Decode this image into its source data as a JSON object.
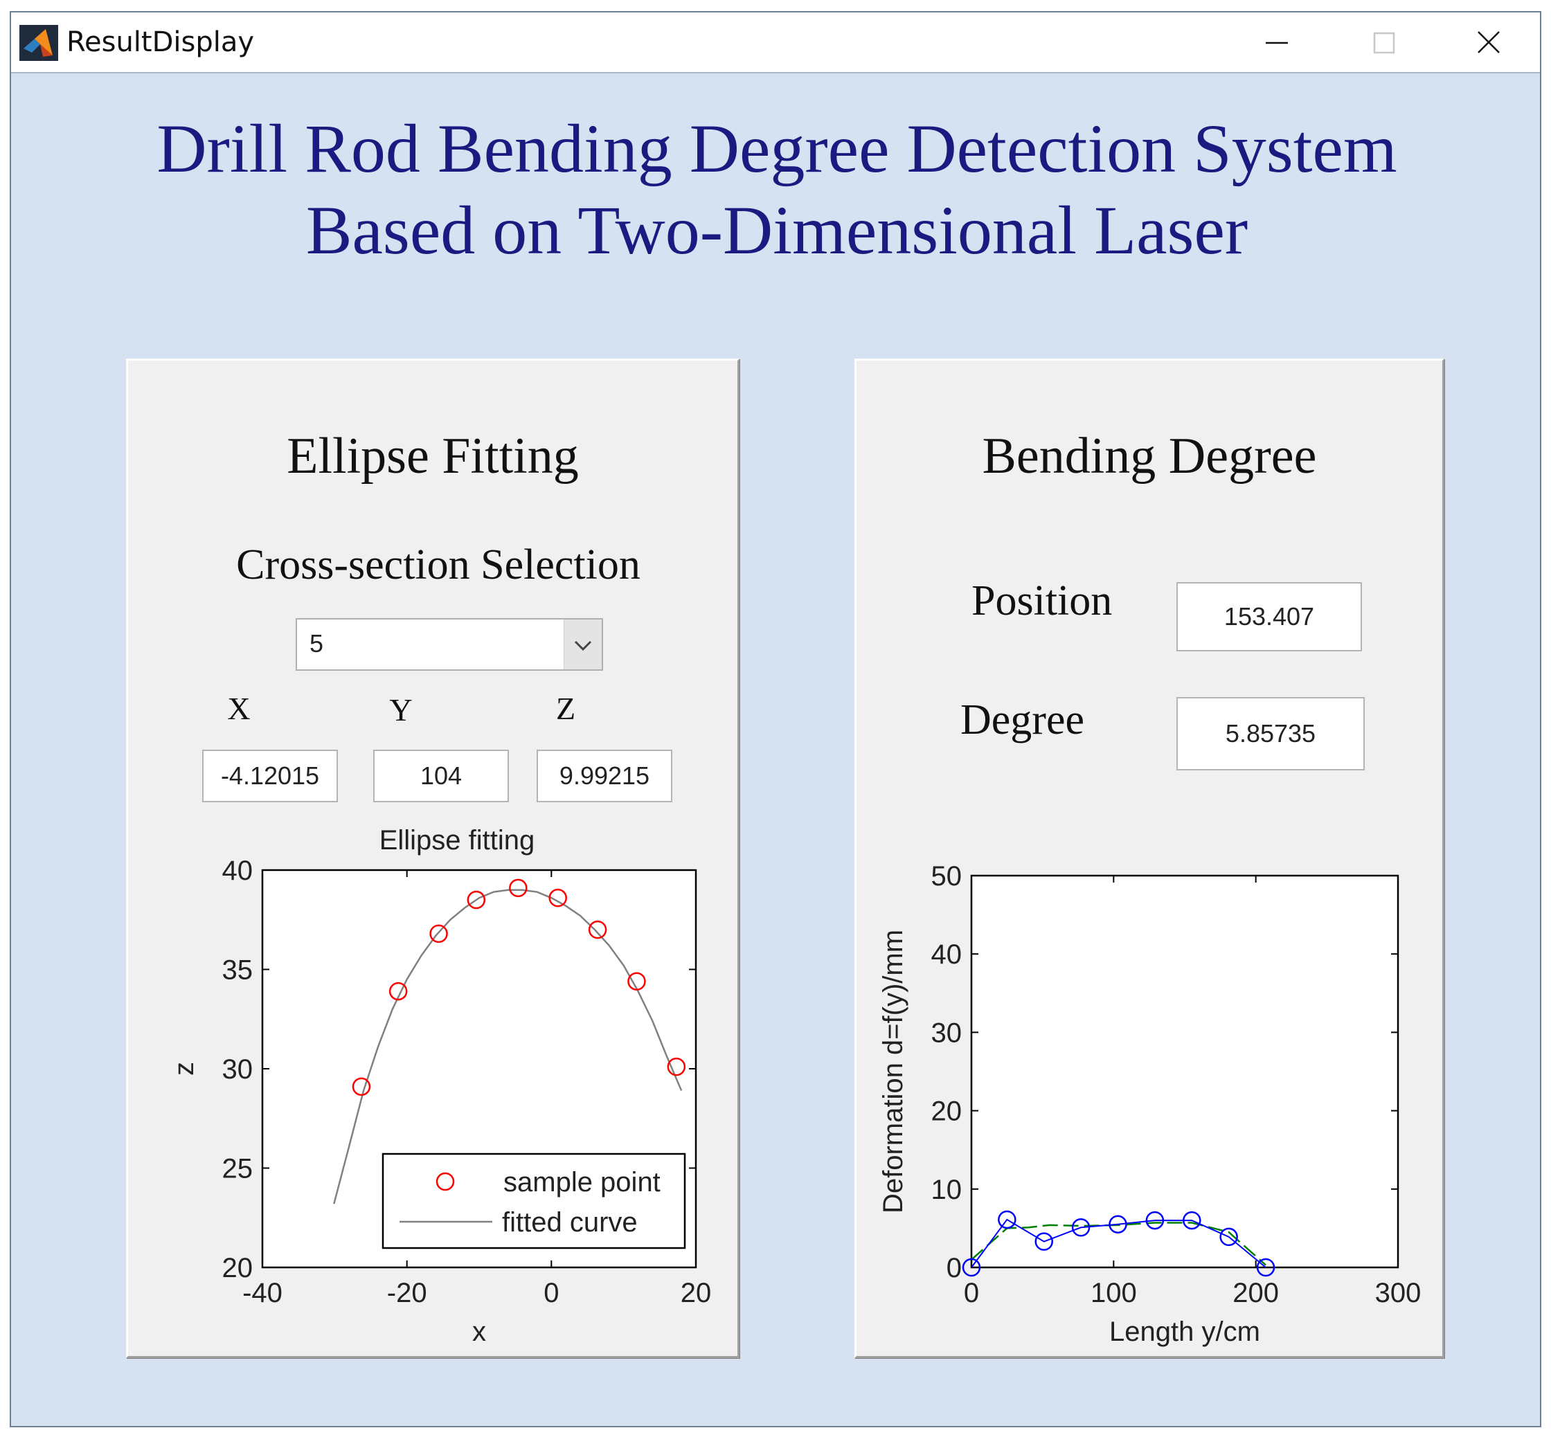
{
  "window": {
    "title": "ResultDisplay",
    "icon": "matlab-logo-icon",
    "controls": [
      "minimize-icon",
      "maximize-icon",
      "close-icon"
    ]
  },
  "header": {
    "title_line1": "Drill Rod Bending Degree Detection System",
    "title_line2": "Based on Two-Dimensional Laser"
  },
  "ellipse_panel": {
    "title": "Ellipse Fitting",
    "selection_label": "Cross-section Selection",
    "selection_value": "5",
    "x_label": "X",
    "y_label": "Y",
    "z_label": "Z",
    "x_value": "-4.12015",
    "y_value": "104",
    "z_value": "9.99215"
  },
  "bending_panel": {
    "title": "Bending Degree",
    "position_label": "Position",
    "position_value": "153.407",
    "degree_label": "Degree",
    "degree_value": "5.85735"
  },
  "colors": {
    "background": "#d6e2f1",
    "title": "#1a1b80",
    "panel": "#f0f0f0",
    "sample_point": "#ff0000",
    "fitted_curve": "#808080",
    "deformation_points": "#0000ff",
    "deformation_fit": "#008000"
  },
  "chart_data": [
    {
      "type": "scatter",
      "title": "Ellipse fitting",
      "xlabel": "x",
      "ylabel": "z",
      "xlim": [
        -40,
        20
      ],
      "ylim": [
        20,
        40
      ],
      "xticks": [
        -40,
        -20,
        0,
        20
      ],
      "yticks": [
        20,
        25,
        30,
        35,
        40
      ],
      "legend": "bottom-right",
      "series": [
        {
          "name": "sample point",
          "style": "circle",
          "x": [
            -26.3,
            -21.2,
            -15.6,
            -10.4,
            -4.6,
            0.9,
            6.4,
            11.8,
            17.3
          ],
          "y": [
            29.1,
            33.9,
            36.8,
            38.5,
            39.1,
            38.6,
            37.0,
            34.4,
            30.1
          ]
        },
        {
          "name": "fitted curve",
          "style": "line",
          "x": [
            -30.1,
            -28,
            -26,
            -24,
            -22,
            -20,
            -18,
            -16,
            -14,
            -12,
            -10,
            -8,
            -6,
            -4,
            -2,
            0,
            2,
            4,
            6,
            8,
            10,
            12,
            14,
            16,
            18
          ],
          "y": [
            23.2,
            26.1,
            28.9,
            31.1,
            33.0,
            34.5,
            35.7,
            36.7,
            37.5,
            38.1,
            38.6,
            38.9,
            39.0,
            39.0,
            38.9,
            38.6,
            38.2,
            37.7,
            37.0,
            36.2,
            35.2,
            33.9,
            32.4,
            30.6,
            28.9
          ]
        }
      ]
    },
    {
      "type": "line",
      "title": "",
      "xlabel": "Length y/cm",
      "ylabel": "Deformation d=f(y)/mm",
      "xlim": [
        0,
        300
      ],
      "ylim": [
        0,
        50
      ],
      "xticks": [
        0,
        100,
        200,
        300
      ],
      "yticks": [
        0,
        10,
        20,
        30,
        40,
        50
      ],
      "series": [
        {
          "style": "circle-line",
          "x": [
            0,
            25,
            51,
            77,
            103,
            129,
            155,
            181,
            207
          ],
          "y": [
            0,
            6.1,
            3.3,
            5.1,
            5.5,
            6.0,
            6.0,
            3.9,
            0
          ]
        },
        {
          "style": "dashed-line",
          "x": [
            0,
            25,
            40,
            55,
            77,
            103,
            129,
            155,
            181,
            207
          ],
          "y": [
            1.0,
            5.0,
            5.1,
            5.4,
            5.3,
            5.4,
            5.7,
            5.7,
            4.5,
            0.3
          ]
        }
      ]
    }
  ]
}
